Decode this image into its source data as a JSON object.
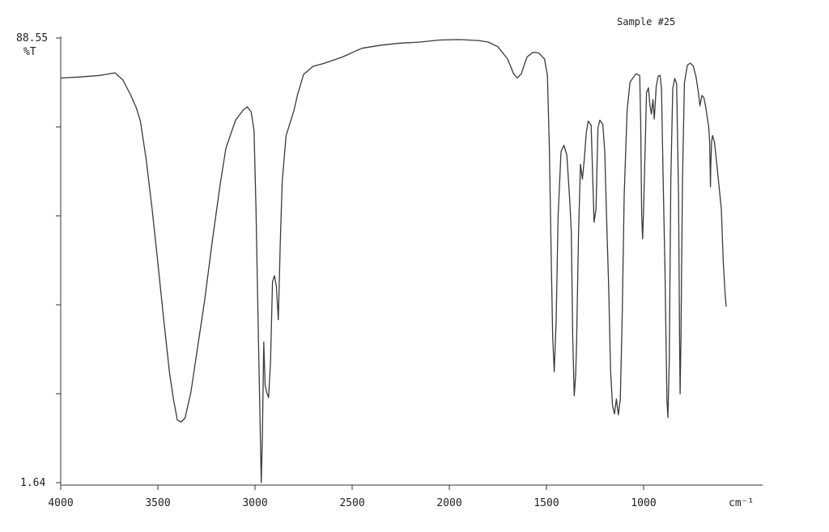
{
  "chart_data": {
    "type": "line",
    "title": "Sample #25",
    "xlabel": "cm⁻¹",
    "ylabel": "%T",
    "xlim": [
      4000,
      600
    ],
    "ylim": [
      1.64,
      88.55
    ],
    "x_ticks": [
      4000,
      3500,
      3000,
      2500,
      2000,
      1500,
      1000
    ],
    "x_tick_labels": [
      "4000",
      "3500",
      "3000",
      "2500",
      "2000",
      "1500",
      "1000"
    ],
    "y_tick_labels": [
      "88.55",
      "1.64"
    ],
    "series": [
      {
        "points": [
          [
            4000,
            80.6
          ],
          [
            3900,
            80.8
          ],
          [
            3800,
            81.1
          ],
          [
            3720,
            81.6
          ],
          [
            3680,
            80.2
          ],
          [
            3640,
            77.3
          ],
          [
            3610,
            74.7
          ],
          [
            3590,
            72.2
          ],
          [
            3560,
            64.7
          ],
          [
            3530,
            55.2
          ],
          [
            3500,
            44.6
          ],
          [
            3470,
            33.6
          ],
          [
            3440,
            23.2
          ],
          [
            3420,
            18.1
          ],
          [
            3400,
            14.0
          ],
          [
            3380,
            13.6
          ],
          [
            3360,
            14.4
          ],
          [
            3330,
            19.4
          ],
          [
            3300,
            27.0
          ],
          [
            3260,
            37.1
          ],
          [
            3220,
            48.8
          ],
          [
            3180,
            59.7
          ],
          [
            3150,
            66.9
          ],
          [
            3100,
            72.4
          ],
          [
            3060,
            74.4
          ],
          [
            3040,
            75.0
          ],
          [
            3020,
            74.0
          ],
          [
            3005,
            70.4
          ],
          [
            2995,
            55.2
          ],
          [
            2985,
            35.0
          ],
          [
            2975,
            15.7
          ],
          [
            2968,
            1.8
          ],
          [
            2962,
            10.7
          ],
          [
            2955,
            29.2
          ],
          [
            2948,
            20.8
          ],
          [
            2940,
            19.4
          ],
          [
            2930,
            18.4
          ],
          [
            2920,
            25.5
          ],
          [
            2910,
            40.9
          ],
          [
            2900,
            42.1
          ],
          [
            2890,
            40.0
          ],
          [
            2880,
            33.5
          ],
          [
            2870,
            48.5
          ],
          [
            2860,
            60.4
          ],
          [
            2840,
            69.4
          ],
          [
            2800,
            74.2
          ],
          [
            2780,
            77.5
          ],
          [
            2750,
            81.3
          ],
          [
            2700,
            82.9
          ],
          [
            2650,
            83.4
          ],
          [
            2550,
            84.7
          ],
          [
            2450,
            86.4
          ],
          [
            2350,
            87.0
          ],
          [
            2250,
            87.4
          ],
          [
            2150,
            87.6
          ],
          [
            2050,
            88.0
          ],
          [
            1950,
            88.1
          ],
          [
            1850,
            87.9
          ],
          [
            1800,
            87.6
          ],
          [
            1750,
            86.7
          ],
          [
            1700,
            84.3
          ],
          [
            1670,
            81.5
          ],
          [
            1650,
            80.6
          ],
          [
            1630,
            81.4
          ],
          [
            1600,
            84.7
          ],
          [
            1570,
            85.6
          ],
          [
            1540,
            85.5
          ],
          [
            1510,
            84.3
          ],
          [
            1495,
            81.1
          ],
          [
            1485,
            66.9
          ],
          [
            1475,
            44.6
          ],
          [
            1468,
            30.2
          ],
          [
            1460,
            23.4
          ],
          [
            1450,
            33.4
          ],
          [
            1440,
            53.8
          ],
          [
            1425,
            66.3
          ],
          [
            1410,
            67.5
          ],
          [
            1395,
            65.6
          ],
          [
            1380,
            56.6
          ],
          [
            1372,
            50.6
          ],
          [
            1365,
            30.4
          ],
          [
            1357,
            18.7
          ],
          [
            1350,
            22.5
          ],
          [
            1345,
            28.9
          ],
          [
            1335,
            50.2
          ],
          [
            1325,
            63.8
          ],
          [
            1315,
            60.9
          ],
          [
            1305,
            64.9
          ],
          [
            1295,
            70.0
          ],
          [
            1285,
            72.2
          ],
          [
            1270,
            71.4
          ],
          [
            1255,
            52.5
          ],
          [
            1245,
            55.1
          ],
          [
            1235,
            70.9
          ],
          [
            1225,
            72.4
          ],
          [
            1210,
            71.6
          ],
          [
            1200,
            66.3
          ],
          [
            1190,
            52.7
          ],
          [
            1180,
            40.2
          ],
          [
            1170,
            23.6
          ],
          [
            1160,
            16.8
          ],
          [
            1150,
            15.2
          ],
          [
            1140,
            18.1
          ],
          [
            1130,
            15.0
          ],
          [
            1120,
            18.1
          ],
          [
            1110,
            34.4
          ],
          [
            1100,
            57.7
          ],
          [
            1085,
            74.2
          ],
          [
            1070,
            79.8
          ],
          [
            1040,
            81.4
          ],
          [
            1020,
            81.1
          ],
          [
            1015,
            72.0
          ],
          [
            1010,
            54.1
          ],
          [
            1005,
            49.3
          ],
          [
            1000,
            55.1
          ],
          [
            990,
            70.0
          ],
          [
            985,
            77.8
          ],
          [
            975,
            78.7
          ],
          [
            968,
            75.4
          ],
          [
            960,
            73.6
          ],
          [
            952,
            76.4
          ],
          [
            945,
            72.6
          ],
          [
            935,
            79.0
          ],
          [
            925,
            81.0
          ],
          [
            915,
            81.1
          ],
          [
            908,
            78.6
          ],
          [
            900,
            62.1
          ],
          [
            890,
            43.1
          ],
          [
            880,
            18.1
          ],
          [
            875,
            14.5
          ],
          [
            868,
            25.5
          ],
          [
            860,
            60.6
          ],
          [
            850,
            78.5
          ],
          [
            840,
            80.5
          ],
          [
            830,
            79.5
          ],
          [
            820,
            57.1
          ],
          [
            815,
            30.3
          ],
          [
            812,
            19.1
          ],
          [
            808,
            29.5
          ],
          [
            800,
            60.4
          ],
          [
            790,
            79.6
          ],
          [
            775,
            83.1
          ],
          [
            760,
            83.5
          ],
          [
            745,
            83.0
          ],
          [
            730,
            80.8
          ],
          [
            718,
            77.7
          ],
          [
            710,
            75.2
          ],
          [
            700,
            77.2
          ],
          [
            690,
            76.8
          ],
          [
            680,
            74.9
          ],
          [
            672,
            72.8
          ],
          [
            665,
            71.1
          ],
          [
            660,
            68.0
          ],
          [
            656,
            59.4
          ],
          [
            654,
            63.6
          ],
          [
            650,
            68.3
          ],
          [
            645,
            69.4
          ],
          [
            635,
            68.0
          ],
          [
            620,
            62.6
          ],
          [
            600,
            55.1
          ],
          [
            590,
            44.7
          ],
          [
            580,
            38.3
          ],
          [
            575,
            36.1
          ]
        ]
      }
    ]
  }
}
